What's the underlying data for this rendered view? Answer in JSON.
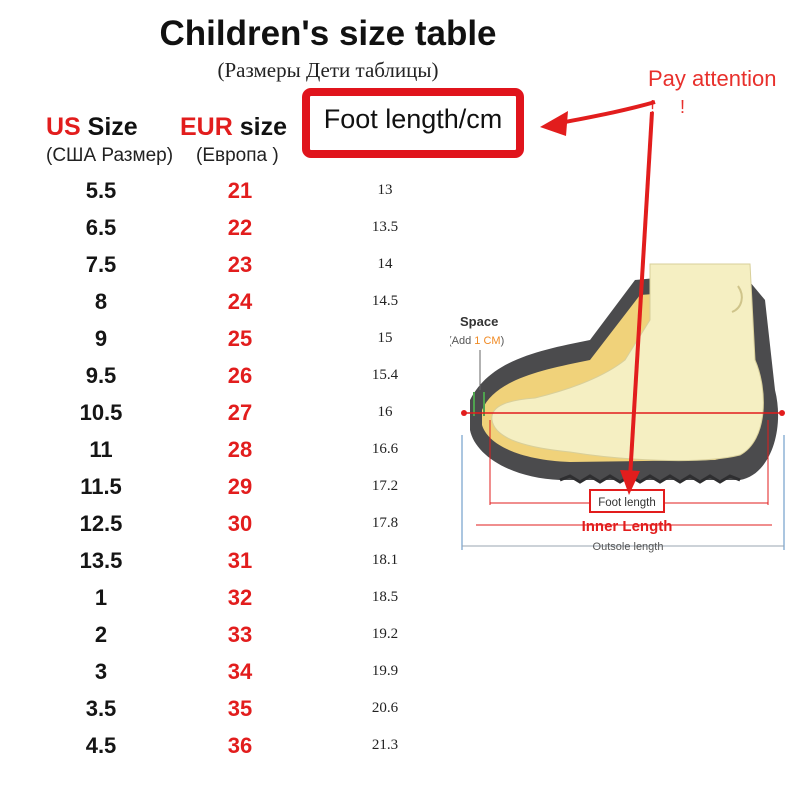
{
  "header": {
    "title": "Children's size table",
    "subtitle": "(Размеры Дети таблицы)"
  },
  "columns": {
    "us": {
      "main_red": "US",
      "main_rest": " Size",
      "sub": "(США Размер)"
    },
    "eur": {
      "main_red": "EUR",
      "main_rest": " size",
      "sub": "(Европа )"
    },
    "foot": {
      "label": "Foot length/cm"
    }
  },
  "note": {
    "text": "Pay attention",
    "marks": "! !"
  },
  "rows": [
    {
      "us": "5.5",
      "eur": "21",
      "cm": "13"
    },
    {
      "us": "6.5",
      "eur": "22",
      "cm": "13.5"
    },
    {
      "us": "7.5",
      "eur": "23",
      "cm": "14"
    },
    {
      "us": "8",
      "eur": "24",
      "cm": "14.5"
    },
    {
      "us": "9",
      "eur": "25",
      "cm": "15"
    },
    {
      "us": "9.5",
      "eur": "26",
      "cm": "15.4"
    },
    {
      "us": "10.5",
      "eur": "27",
      "cm": "16"
    },
    {
      "us": "11",
      "eur": "28",
      "cm": "16.6"
    },
    {
      "us": "11.5",
      "eur": "29",
      "cm": "17.2"
    },
    {
      "us": "12.5",
      "eur": "30",
      "cm": "17.8"
    },
    {
      "us": "13.5",
      "eur": "31",
      "cm": "18.1"
    },
    {
      "us": "1",
      "eur": "32",
      "cm": "18.5"
    },
    {
      "us": "2",
      "eur": "33",
      "cm": "19.2"
    },
    {
      "us": "3",
      "eur": "34",
      "cm": "19.9"
    },
    {
      "us": "3.5",
      "eur": "35",
      "cm": "20.6"
    },
    {
      "us": "4.5",
      "eur": "36",
      "cm": "21.3"
    }
  ],
  "diagram": {
    "space_label": "Space",
    "add_prefix": "(Add ",
    "add_value": "1 CM",
    "add_suffix": ")",
    "foot_length_label": "Foot length",
    "inner_length_label": "Inner Length",
    "outsole_length_label": "Outsole length"
  },
  "colors": {
    "accent_red": "#e21d1d",
    "box_red": "#e0141c",
    "note_red": "#e8302c",
    "space_orange": "#f08a24",
    "guide_blue": "#8fb2d6"
  }
}
